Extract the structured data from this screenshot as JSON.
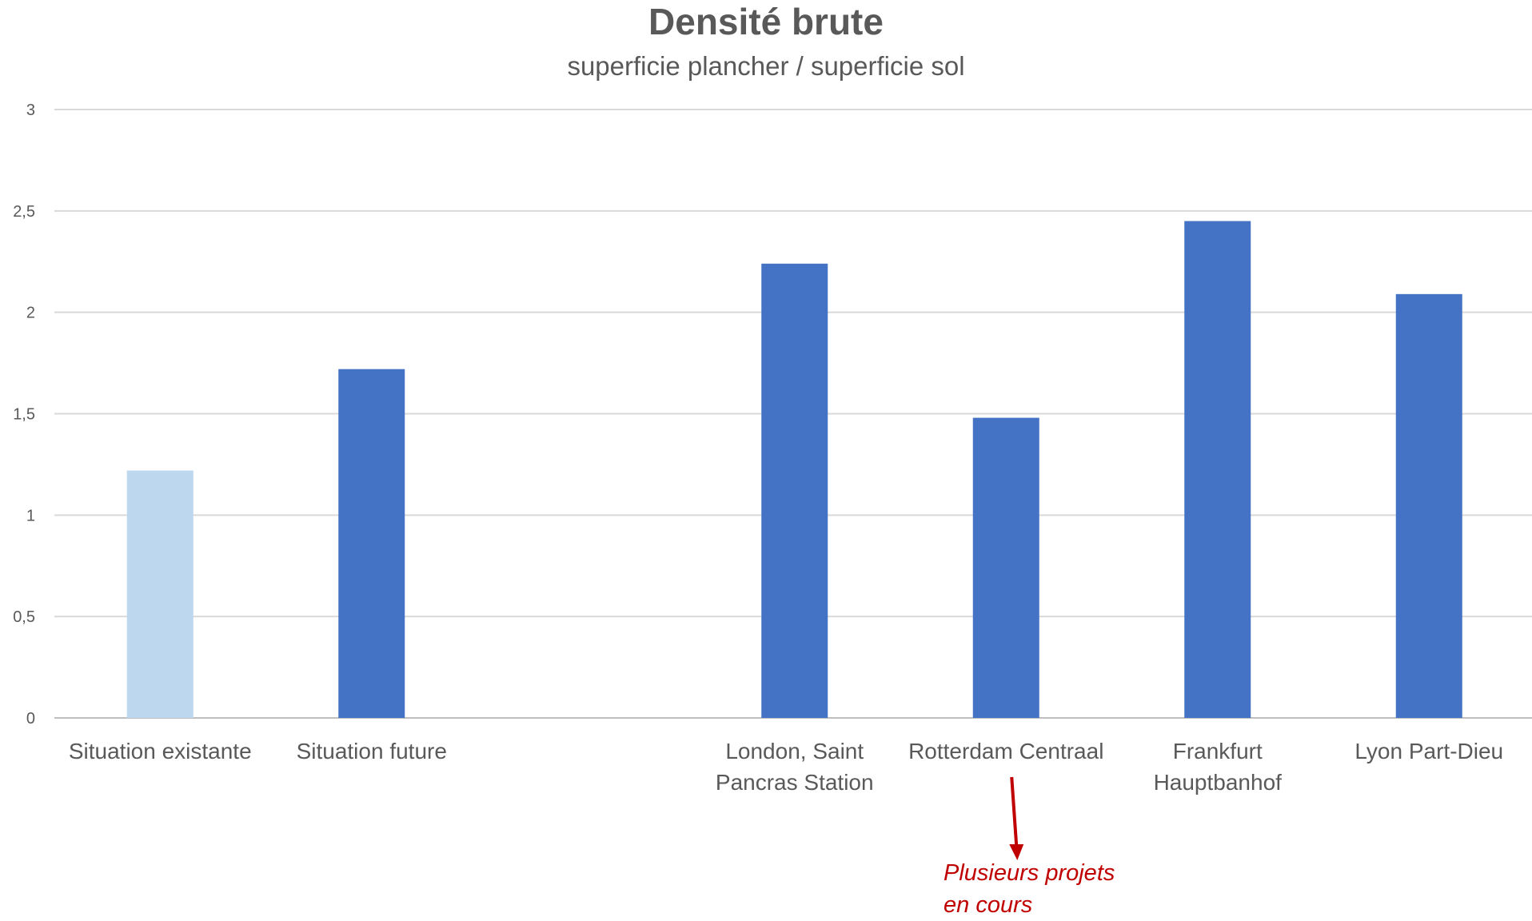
{
  "chart_data": {
    "type": "bar",
    "title": "Densité brute",
    "subtitle": "superficie plancher / superficie sol",
    "categories": [
      [
        "Situation existante"
      ],
      [
        "Situation future"
      ],
      [
        ""
      ],
      [
        "London, Saint",
        "Pancras Station"
      ],
      [
        "Rotterdam Centraal"
      ],
      [
        "Frankfurt",
        "Hauptbanhof"
      ],
      [
        "Lyon Part-Dieu"
      ]
    ],
    "values": [
      1.22,
      1.72,
      null,
      2.24,
      1.48,
      2.45,
      2.09
    ],
    "colors": [
      "#bdd7ee",
      "#4472c4",
      "#4472c4",
      "#4472c4",
      "#4472c4",
      "#4472c4",
      "#4472c4"
    ],
    "ylim": [
      0,
      3
    ],
    "yticks": [
      0,
      0.5,
      1,
      1.5,
      2,
      2.5,
      3
    ],
    "ytick_labels": [
      "0",
      "0,5",
      "1",
      "1,5",
      "2",
      "2,5",
      "3"
    ],
    "grid": true,
    "xlabel": "",
    "ylabel": "",
    "annotation": {
      "text_lines": [
        "Plusieurs projets",
        "en cours"
      ],
      "target_category": "Rotterdam Centraal",
      "color": "#c00000"
    }
  }
}
